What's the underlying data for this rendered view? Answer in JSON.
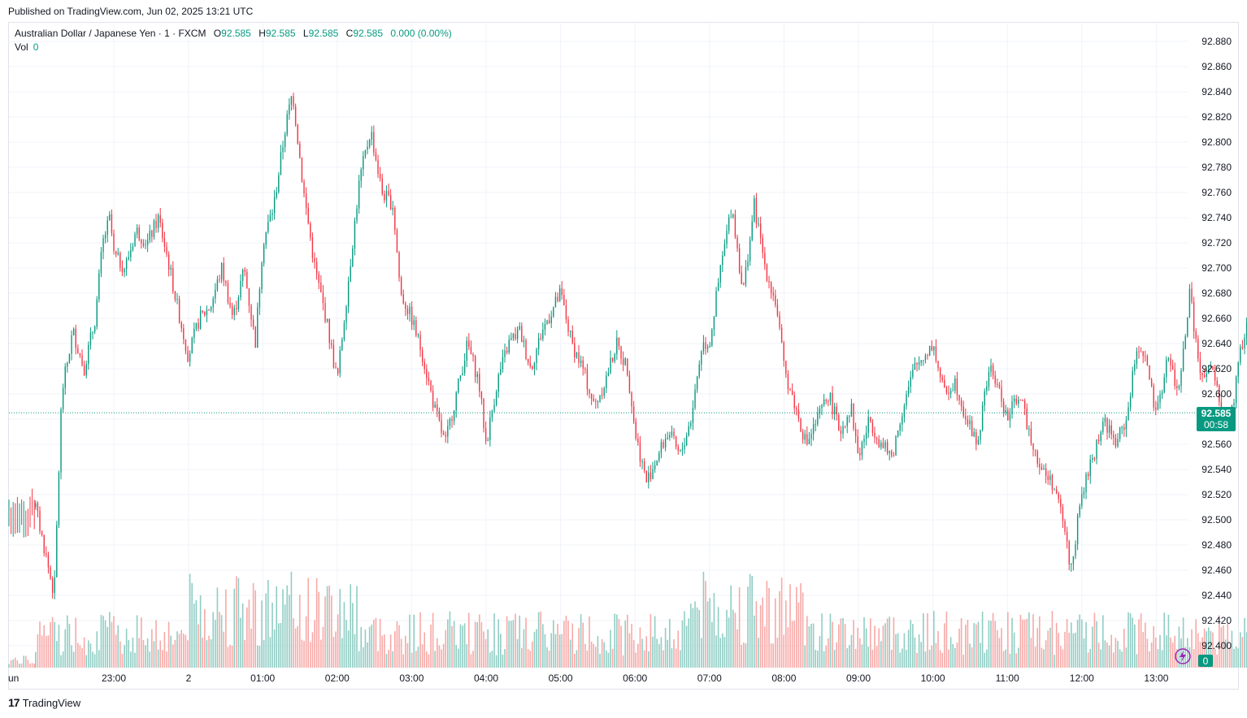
{
  "published": "Published on TradingView.com, Jun 02, 2025 13:21 UTC",
  "legend": {
    "symbol": "Australian Dollar / Japanese Yen · 1 · FXCM",
    "o_label": "O",
    "o": "92.585",
    "h_label": "H",
    "h": "92.585",
    "l_label": "L",
    "l": "92.585",
    "c_label": "C",
    "c": "92.585",
    "change": "0.000 (0.00%)",
    "vol_label": "Vol",
    "vol": "0"
  },
  "price_tag": {
    "price": "92.585",
    "countdown": "00:58"
  },
  "vol_tag": "0",
  "footer": {
    "brand": "TradingView",
    "logo": "17"
  },
  "colors": {
    "up": "#089981",
    "down": "#f23645",
    "volume_up": "#90cdc4",
    "volume_down": "#f7a9a7",
    "grid": "#f0f3fa"
  },
  "chart_data": {
    "type": "candlestick",
    "symbol": "AUDJPY",
    "interval": "1",
    "y_ticks": [
      "92.400",
      "92.420",
      "92.440",
      "92.460",
      "92.480",
      "92.500",
      "92.520",
      "92.540",
      "92.560",
      "92.580",
      "92.600",
      "92.620",
      "92.640",
      "92.660",
      "92.680",
      "92.700",
      "92.720",
      "92.740",
      "92.760",
      "92.780",
      "92.800",
      "92.820",
      "92.840",
      "92.860",
      "92.880"
    ],
    "y_tick_labels_shown": [
      "92.880",
      "92.860",
      "92.840",
      "92.820",
      "92.800",
      "92.780",
      "92.760",
      "92.740",
      "92.720",
      "92.700",
      "92.680",
      "92.660",
      "92.640",
      "92.620",
      "92.600",
      "92.560",
      "92.540",
      "92.520",
      "92.500",
      "92.480",
      "92.460",
      "92.440",
      "92.420",
      "92.400"
    ],
    "ylim": [
      92.394,
      92.896
    ],
    "x_tick_labels": [
      "Jun",
      "23:00",
      "2",
      "01:00",
      "02:00",
      "03:00",
      "04:00",
      "05:00",
      "06:00",
      "07:00",
      "08:00",
      "09:00",
      "10:00",
      "11:00",
      "12:00",
      "13:00"
    ],
    "last_price": 92.585,
    "close_path": [
      [
        21.95,
        92.51
      ],
      [
        22.2,
        92.44
      ],
      [
        22.3,
        92.6
      ],
      [
        22.45,
        92.65
      ],
      [
        22.6,
        92.62
      ],
      [
        22.75,
        92.66
      ],
      [
        22.85,
        92.72
      ],
      [
        22.95,
        92.74
      ],
      [
        23.0,
        92.71
      ],
      [
        23.15,
        92.7
      ],
      [
        23.3,
        92.73
      ],
      [
        23.45,
        92.72
      ],
      [
        23.6,
        92.74
      ],
      [
        23.75,
        92.7
      ],
      [
        23.85,
        92.67
      ],
      [
        24.0,
        92.63
      ],
      [
        24.15,
        92.66
      ],
      [
        24.3,
        92.67
      ],
      [
        24.45,
        92.7
      ],
      [
        24.6,
        92.66
      ],
      [
        24.75,
        92.7
      ],
      [
        24.9,
        92.64
      ],
      [
        25.0,
        92.72
      ],
      [
        25.15,
        92.75
      ],
      [
        25.3,
        92.81
      ],
      [
        25.4,
        92.84
      ],
      [
        25.55,
        92.76
      ],
      [
        25.7,
        92.7
      ],
      [
        25.85,
        92.66
      ],
      [
        26.0,
        92.61
      ],
      [
        26.15,
        92.69
      ],
      [
        26.3,
        92.77
      ],
      [
        26.45,
        92.81
      ],
      [
        26.6,
        92.76
      ],
      [
        26.75,
        92.75
      ],
      [
        26.85,
        92.68
      ],
      [
        27.0,
        92.66
      ],
      [
        27.15,
        92.63
      ],
      [
        27.3,
        92.59
      ],
      [
        27.45,
        92.56
      ],
      [
        27.6,
        92.6
      ],
      [
        27.75,
        92.64
      ],
      [
        27.9,
        92.61
      ],
      [
        28.0,
        92.56
      ],
      [
        28.15,
        92.61
      ],
      [
        28.3,
        92.64
      ],
      [
        28.45,
        92.65
      ],
      [
        28.6,
        92.62
      ],
      [
        28.75,
        92.65
      ],
      [
        29.0,
        92.68
      ],
      [
        29.15,
        92.64
      ],
      [
        29.3,
        92.62
      ],
      [
        29.45,
        92.59
      ],
      [
        29.6,
        92.61
      ],
      [
        29.75,
        92.64
      ],
      [
        29.9,
        92.62
      ],
      [
        30.0,
        92.57
      ],
      [
        30.15,
        92.53
      ],
      [
        30.3,
        92.55
      ],
      [
        30.45,
        92.57
      ],
      [
        30.6,
        92.55
      ],
      [
        30.75,
        92.58
      ],
      [
        30.9,
        92.64
      ],
      [
        31.0,
        92.64
      ],
      [
        31.15,
        92.7
      ],
      [
        31.3,
        92.75
      ],
      [
        31.45,
        92.68
      ],
      [
        31.6,
        92.75
      ],
      [
        31.75,
        92.7
      ],
      [
        31.9,
        92.67
      ],
      [
        32.0,
        92.62
      ],
      [
        32.15,
        92.59
      ],
      [
        32.3,
        92.56
      ],
      [
        32.45,
        92.58
      ],
      [
        32.6,
        92.6
      ],
      [
        32.75,
        92.57
      ],
      [
        32.9,
        92.59
      ],
      [
        33.0,
        92.55
      ],
      [
        33.15,
        92.58
      ],
      [
        33.3,
        92.56
      ],
      [
        33.45,
        92.55
      ],
      [
        33.6,
        92.59
      ],
      [
        33.75,
        92.62
      ],
      [
        34.0,
        92.64
      ],
      [
        34.15,
        92.6
      ],
      [
        34.3,
        92.61
      ],
      [
        34.45,
        92.58
      ],
      [
        34.6,
        92.56
      ],
      [
        34.75,
        92.62
      ],
      [
        34.85,
        92.61
      ],
      [
        35.0,
        92.58
      ],
      [
        35.15,
        92.6
      ],
      [
        35.3,
        92.57
      ],
      [
        35.45,
        92.54
      ],
      [
        35.6,
        92.53
      ],
      [
        35.75,
        92.5
      ],
      [
        35.85,
        92.46
      ],
      [
        36.0,
        92.52
      ],
      [
        36.15,
        92.55
      ],
      [
        36.3,
        92.58
      ],
      [
        36.45,
        92.56
      ],
      [
        36.6,
        92.58
      ],
      [
        36.75,
        92.64
      ],
      [
        36.85,
        92.63
      ],
      [
        37.0,
        92.58
      ],
      [
        37.15,
        92.63
      ],
      [
        37.3,
        92.6
      ],
      [
        37.45,
        92.68
      ],
      [
        37.6,
        92.61
      ],
      [
        37.75,
        92.62
      ],
      [
        37.9,
        92.58
      ],
      [
        38.0,
        92.58
      ],
      [
        38.15,
        92.64
      ],
      [
        38.3,
        92.67
      ],
      [
        38.45,
        92.64
      ],
      [
        38.6,
        92.69
      ],
      [
        38.75,
        92.64
      ],
      [
        38.9,
        92.62
      ],
      [
        39.0,
        92.61
      ],
      [
        39.15,
        92.63
      ],
      [
        39.3,
        92.59
      ],
      [
        39.4,
        92.58
      ]
    ]
  }
}
